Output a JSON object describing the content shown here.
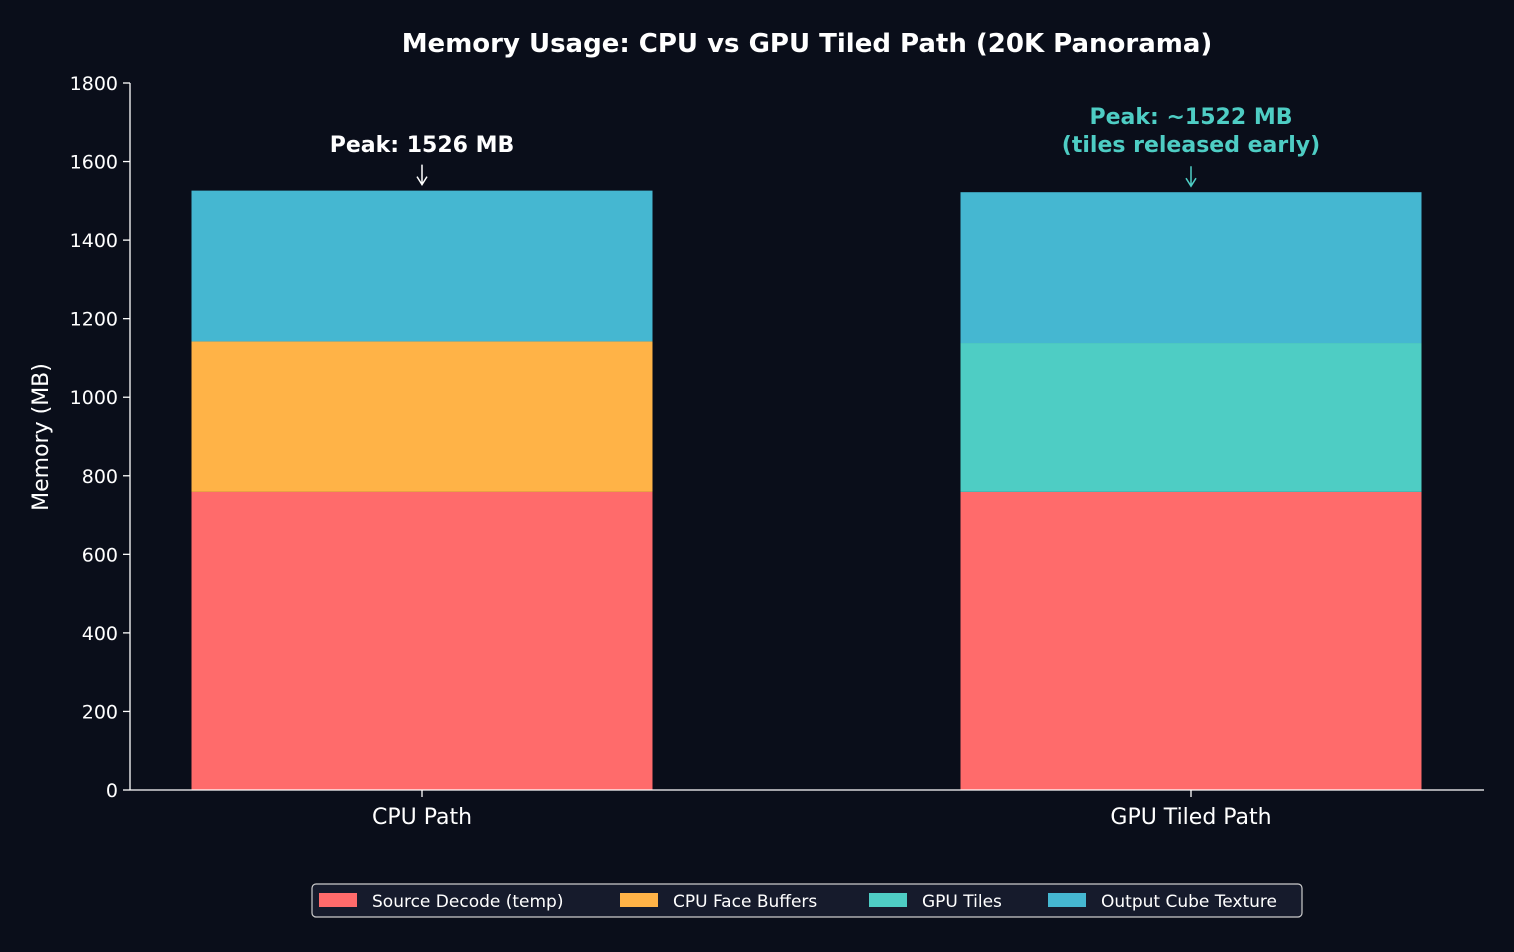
{
  "chart_data": {
    "type": "bar",
    "stacked": true,
    "title": "Memory Usage: CPU vs GPU Tiled Path (20K Panorama)",
    "xlabel": "",
    "ylabel": "Memory (MB)",
    "ylim": [
      0,
      1800
    ],
    "yticks": [
      0,
      200,
      400,
      600,
      800,
      1000,
      1200,
      1400,
      1600,
      1800
    ],
    "grid": false,
    "legend_placement": "bottom-center",
    "categories": [
      "CPU Path",
      "GPU Tiled Path"
    ],
    "series": [
      {
        "name": "Source Decode (temp)",
        "color": "#ff6b6b",
        "values": [
          759,
          759
        ]
      },
      {
        "name": "CPU Face Buffers",
        "color": "#ffb347",
        "values": [
          383,
          0
        ]
      },
      {
        "name": "GPU Tiles",
        "color": "#4ecdc4",
        "values": [
          0,
          379
        ]
      },
      {
        "name": "Output Cube Texture",
        "color": "#45b7d1",
        "values": [
          384,
          384
        ]
      }
    ],
    "annotations": [
      {
        "category": "CPU Path",
        "lines": [
          "Peak: 1526 MB"
        ],
        "color": "#ffffff",
        "value": 1526
      },
      {
        "category": "GPU Tiled Path",
        "lines": [
          "Peak: ~1522 MB",
          "(tiles released early)"
        ],
        "color": "#4ecdc4",
        "value": 1522
      }
    ]
  }
}
